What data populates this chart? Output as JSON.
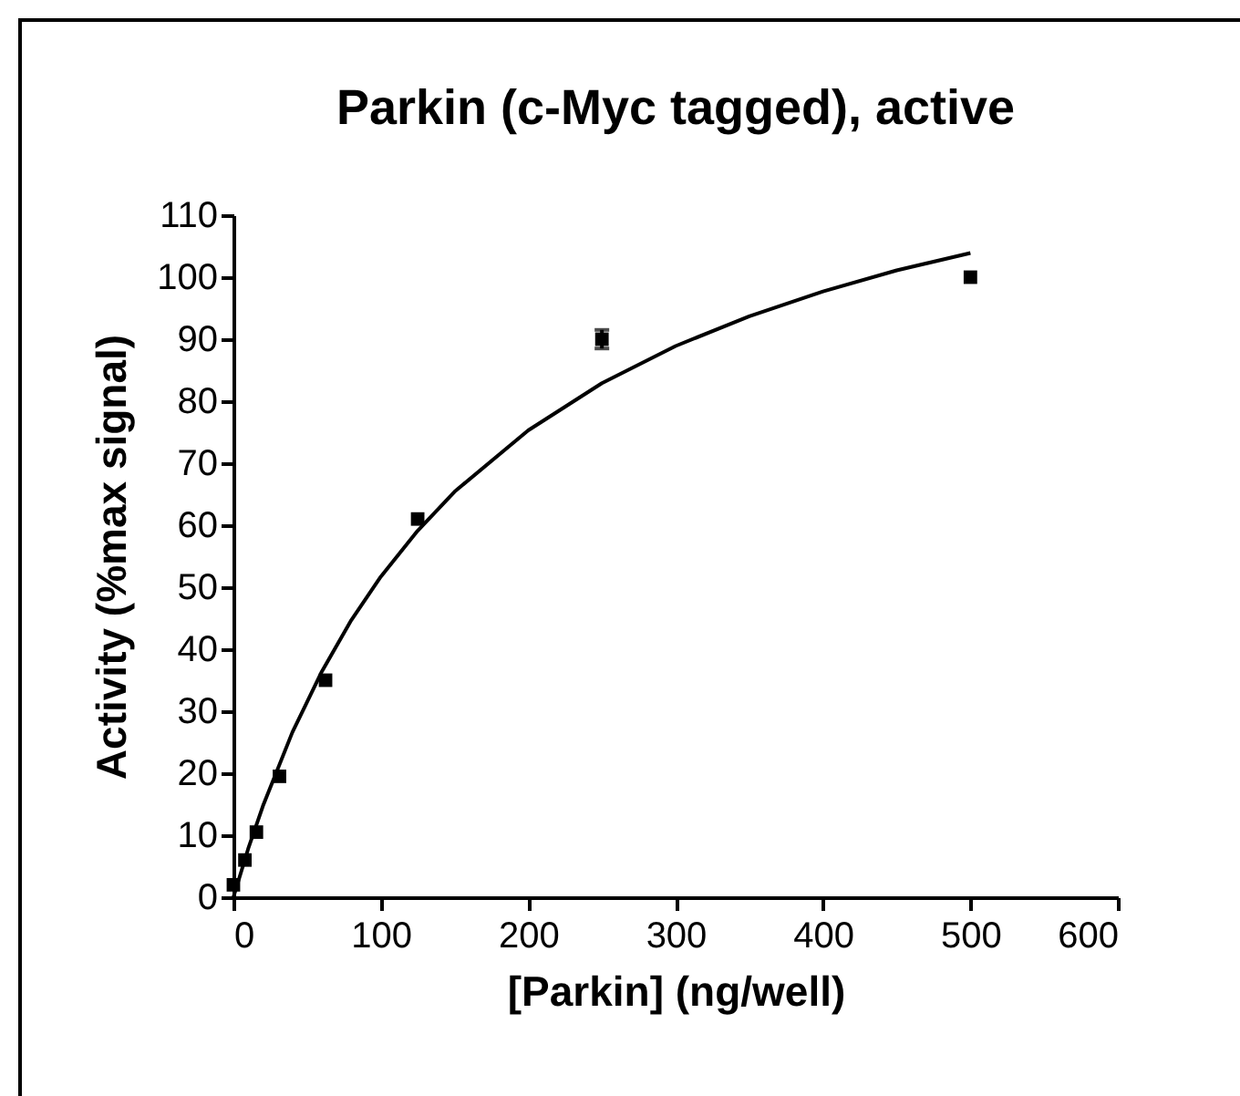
{
  "chart_data": {
    "type": "scatter",
    "title": "Parkin (c-Myc tagged), active",
    "xlabel": "[Parkin] (ng/well)",
    "ylabel": "Activity (%max signal)",
    "xlim": [
      0,
      600
    ],
    "xticks": [
      0,
      100,
      200,
      300,
      400,
      500,
      600
    ],
    "ylim": [
      0,
      110
    ],
    "yticks": [
      0,
      10,
      20,
      30,
      40,
      50,
      60,
      70,
      80,
      90,
      100,
      110
    ],
    "grid": false,
    "series": [
      {
        "color": "#000000",
        "marker": "square",
        "x": [
          0,
          7.8,
          15.6,
          31.25,
          62.5,
          125,
          250,
          500
        ],
        "values": [
          2,
          6,
          10.5,
          19.5,
          35,
          61,
          90,
          100
        ],
        "errors": [
          null,
          null,
          null,
          null,
          null,
          null,
          1.5,
          null
        ]
      },
      {
        "type": "line",
        "color": "#000000",
        "marker": "none",
        "line_style": "solid",
        "x": [
          0,
          10,
          20,
          40,
          60,
          80,
          100,
          125,
          150,
          200,
          250,
          300,
          350,
          400,
          450,
          500
        ],
        "values": [
          0,
          7.8,
          14.7,
          26.6,
          36.4,
          44.7,
          51.7,
          59.1,
          65.4,
          75.3,
          82.9,
          88.9,
          93.7,
          97.7,
          101.1,
          103.9
        ]
      }
    ]
  }
}
